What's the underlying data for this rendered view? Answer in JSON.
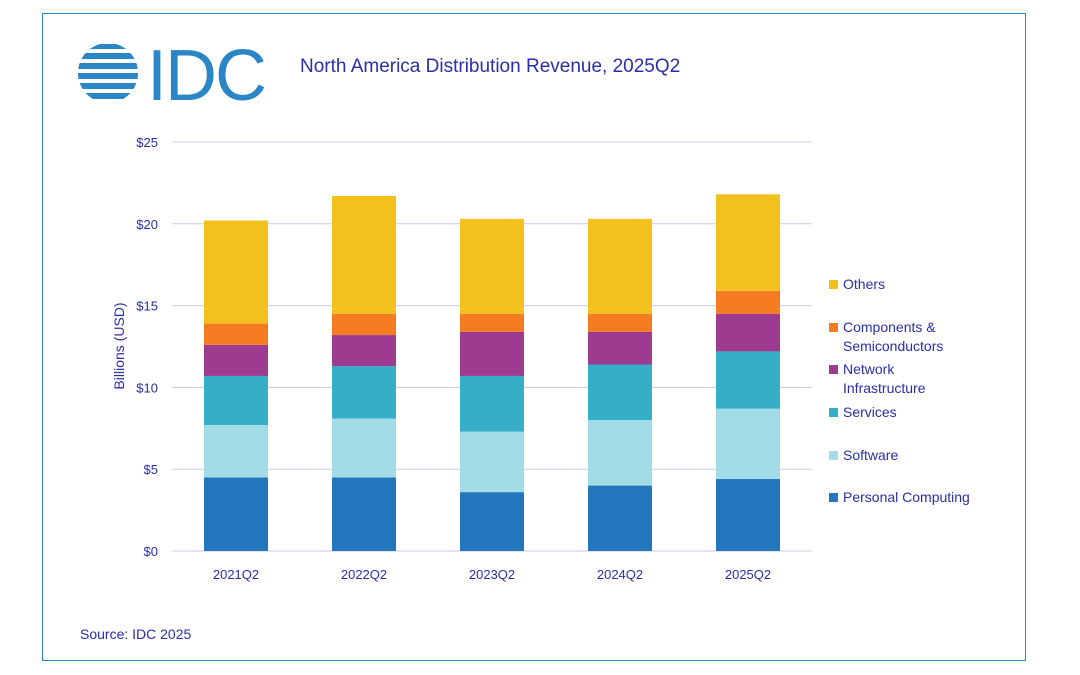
{
  "logo": {
    "text": "IDC"
  },
  "chart_data": {
    "type": "bar",
    "stacked": true,
    "title": "North America Distribution Revenue, 2025Q2",
    "ylabel": "Billions (USD)",
    "xlabel": "",
    "ylim": [
      0,
      25
    ],
    "yticks": [
      0,
      5,
      10,
      15,
      20,
      25
    ],
    "ytick_labels": [
      "$0",
      "$5",
      "$10",
      "$15",
      "$20",
      "$25"
    ],
    "categories": [
      "2021Q2",
      "2022Q2",
      "2023Q2",
      "2024Q2",
      "2025Q2"
    ],
    "grid": true,
    "legend_position": "right",
    "series": [
      {
        "name": "Personal Computing",
        "color": "#2477bd",
        "values": [
          4.5,
          4.5,
          3.6,
          4.0,
          4.4
        ]
      },
      {
        "name": "Software",
        "color": "#a3dbe7",
        "values": [
          3.2,
          3.6,
          3.7,
          4.0,
          4.3
        ]
      },
      {
        "name": "Services",
        "color": "#35aec8",
        "values": [
          3.0,
          3.2,
          3.4,
          3.4,
          3.5
        ]
      },
      {
        "name": "Network Infrastructure",
        "color": "#9c3b8f",
        "values": [
          1.9,
          1.9,
          2.7,
          2.0,
          2.3
        ]
      },
      {
        "name": "Components & Semiconductors",
        "color": "#f47b20",
        "values": [
          1.3,
          1.3,
          1.1,
          1.1,
          1.4
        ]
      },
      {
        "name": "Others",
        "color": "#f2c11d",
        "values": [
          6.3,
          7.2,
          5.8,
          5.8,
          5.9
        ]
      }
    ],
    "legend_lines": [
      [
        "Others"
      ],
      [
        "Components &",
        "Semiconductors"
      ],
      [
        "Network",
        "Infrastructure"
      ],
      [
        "Services"
      ],
      [
        "Software"
      ],
      [
        "Personal Computing"
      ]
    ]
  },
  "footer": {
    "source": "Source: IDC 2025"
  }
}
